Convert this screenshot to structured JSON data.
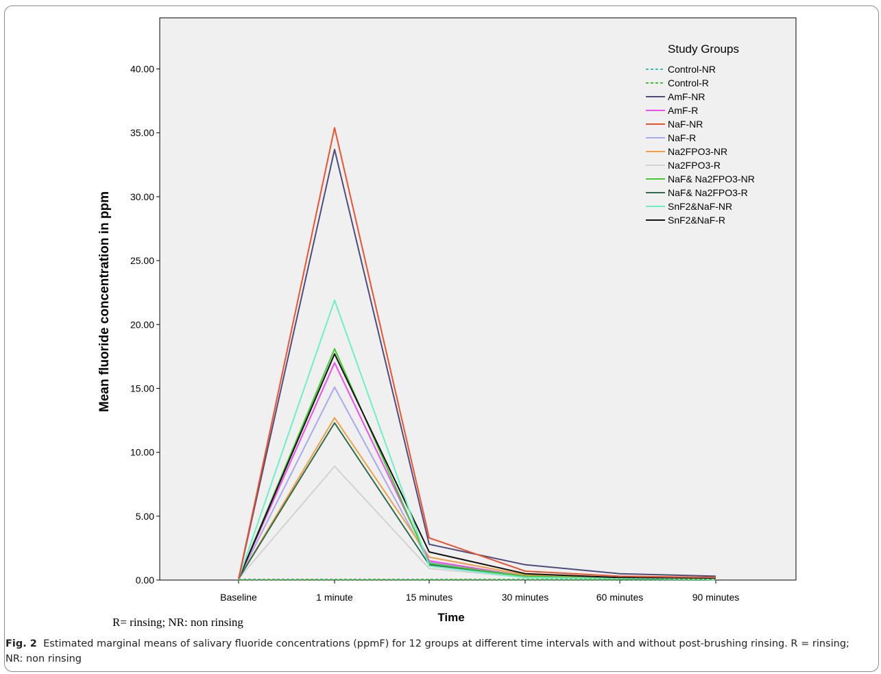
{
  "note": "R= rinsing; NR: non rinsing",
  "caption": {
    "label": "Fig. 2",
    "text": "Estimated marginal means of salivary fluoride concentrations (ppmF) for 12 groups at different time intervals with and without post-brushing rinsing. R = rinsing; NR: non rinsing"
  },
  "chart_data": {
    "type": "line",
    "title": "",
    "xlabel": "Time",
    "ylabel": "Mean fluoride concentration in ppm",
    "categories": [
      "Baseline",
      "1 minute",
      "15 minutes",
      "30 minutes",
      "60 minutes",
      "90 minutes"
    ],
    "ylim": [
      0,
      44
    ],
    "yticks": [
      "0.00",
      "5.00",
      "10.00",
      "15.00",
      "20.00",
      "25.00",
      "30.00",
      "35.00",
      "40.00"
    ],
    "grid": false,
    "background": "#f0f0f0",
    "legend": {
      "title": "Study Groups",
      "position": "top-right"
    },
    "series": [
      {
        "name": "Control-NR",
        "color": "#3cbcb4",
        "dashed": true,
        "values": [
          0.05,
          0.05,
          0.05,
          0.05,
          0.05,
          0.05
        ]
      },
      {
        "name": "Control-R",
        "color": "#3bbd3b",
        "dashed": true,
        "values": [
          0.05,
          0.05,
          0.05,
          0.05,
          0.05,
          0.05
        ]
      },
      {
        "name": "AmF-NR",
        "color": "#4b4b7d",
        "dashed": false,
        "values": [
          0.1,
          33.7,
          2.8,
          1.2,
          0.5,
          0.3
        ]
      },
      {
        "name": "AmF-R",
        "color": "#f24bf0",
        "dashed": false,
        "values": [
          0.1,
          17.0,
          1.5,
          0.3,
          0.1,
          0.05
        ]
      },
      {
        "name": "NaF-NR",
        "color": "#f0502a",
        "dashed": false,
        "values": [
          0.1,
          35.4,
          3.3,
          0.7,
          0.3,
          0.2
        ]
      },
      {
        "name": "NaF-R",
        "color": "#a8a8f0",
        "dashed": false,
        "values": [
          0.1,
          15.1,
          1.4,
          0.3,
          0.1,
          0.05
        ]
      },
      {
        "name": "Na2FPO3-NR",
        "color": "#f0a042",
        "dashed": false,
        "values": [
          0.1,
          12.7,
          1.8,
          0.4,
          0.15,
          0.1
        ]
      },
      {
        "name": "Na2FPO3-R",
        "color": "#d2d2d2",
        "dashed": false,
        "values": [
          0.1,
          8.9,
          0.9,
          0.2,
          0.1,
          0.05
        ]
      },
      {
        "name": "NaF& Na2FPO3-NR",
        "color": "#3fcc2e",
        "dashed": false,
        "values": [
          0.1,
          18.1,
          1.3,
          0.3,
          0.1,
          0.05
        ]
      },
      {
        "name": "NaF& Na2FPO3-R",
        "color": "#2d6b4a",
        "dashed": false,
        "values": [
          0.1,
          12.3,
          1.2,
          0.3,
          0.1,
          0.05
        ]
      },
      {
        "name": "SnF2&NaF-NR",
        "color": "#6af0c8",
        "dashed": false,
        "values": [
          0.1,
          21.9,
          1.1,
          0.2,
          0.1,
          0.05
        ]
      },
      {
        "name": "SnF2&NaF-R",
        "color": "#111111",
        "dashed": false,
        "values": [
          0.1,
          17.7,
          2.2,
          0.5,
          0.2,
          0.1
        ]
      }
    ]
  }
}
